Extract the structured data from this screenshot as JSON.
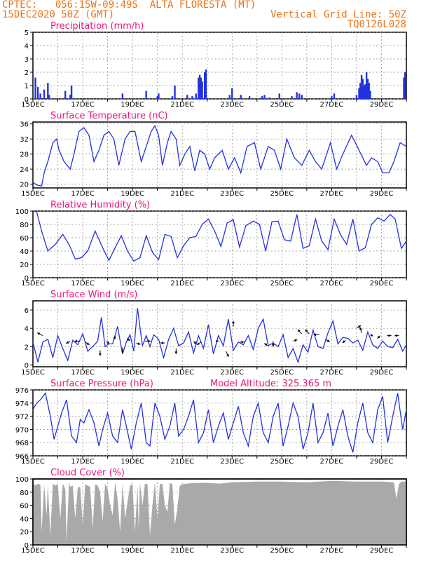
{
  "header": {
    "line1_left": "CPTEC:   056:15W-09:49S  ALTA FLORESTA (MT)",
    "line2_left": "15DEC2020 50Z (GMT)",
    "line2_right": "Vertical Grid Line: 50Z",
    "line3_right": "TQ0126L028"
  },
  "colors": {
    "line": "#2233dd",
    "bar": "#2233dd",
    "cloud": "#a9a9a9",
    "title": "#e8177a",
    "header": "#e8751a"
  },
  "x_labels": [
    "15DEC",
    "17DEC",
    "19DEC",
    "21DEC",
    "23DEC",
    "25DEC",
    "27DEC",
    "29DEC"
  ],
  "chart_data": [
    {
      "type": "bar",
      "title": "Precipitation (mm/h)",
      "ylim": [
        0,
        5
      ],
      "yticks": [
        0,
        1,
        2,
        3,
        4,
        5
      ],
      "x_range": [
        0,
        15
      ],
      "points": [
        [
          0.1,
          1.6
        ],
        [
          0.2,
          0.9
        ],
        [
          0.3,
          0.4
        ],
        [
          0.45,
          0.7
        ],
        [
          0.6,
          1.2
        ],
        [
          0.65,
          0.3
        ],
        [
          1.3,
          0.6
        ],
        [
          1.5,
          0.3
        ],
        [
          1.55,
          1.0
        ],
        [
          3.6,
          0.4
        ],
        [
          4.55,
          0.6
        ],
        [
          5.0,
          0.2
        ],
        [
          5.05,
          0.4
        ],
        [
          5.6,
          0.2
        ],
        [
          5.7,
          1.0
        ],
        [
          6.2,
          0.3
        ],
        [
          6.4,
          0.2
        ],
        [
          6.55,
          0.4
        ],
        [
          6.65,
          1.6
        ],
        [
          6.7,
          1.8
        ],
        [
          6.75,
          1.6
        ],
        [
          6.8,
          1.3
        ],
        [
          6.9,
          2.0
        ],
        [
          6.95,
          2.2
        ],
        [
          7.9,
          0.3
        ],
        [
          8.0,
          0.8
        ],
        [
          8.35,
          0.3
        ],
        [
          8.7,
          0.2
        ],
        [
          9.2,
          0.2
        ],
        [
          9.3,
          0.3
        ],
        [
          9.5,
          0.1
        ],
        [
          9.9,
          0.4
        ],
        [
          10.4,
          0.2
        ],
        [
          10.6,
          0.5
        ],
        [
          10.7,
          0.4
        ],
        [
          10.8,
          0.3
        ],
        [
          12.0,
          0.2
        ],
        [
          12.1,
          0.4
        ],
        [
          13.0,
          0.3
        ],
        [
          13.1,
          0.8
        ],
        [
          13.15,
          1.2
        ],
        [
          13.2,
          1.8
        ],
        [
          13.25,
          1.5
        ],
        [
          13.3,
          1.0
        ],
        [
          13.35,
          1.1
        ],
        [
          13.4,
          2.0
        ],
        [
          13.45,
          1.5
        ],
        [
          13.5,
          1.2
        ],
        [
          13.55,
          0.6
        ],
        [
          14.9,
          1.6
        ],
        [
          14.95,
          2.0
        ]
      ]
    },
    {
      "type": "line",
      "title": "Surface Temperature (nC)",
      "ylim": [
        19,
        36.5
      ],
      "yticks": [
        20,
        24,
        28,
        32,
        36
      ],
      "x": [
        0,
        0.15,
        0.35,
        0.45,
        0.6,
        0.8,
        0.95,
        1.05,
        1.25,
        1.5,
        1.65,
        1.85,
        2.05,
        2.25,
        2.45,
        2.65,
        2.85,
        3.05,
        3.25,
        3.45,
        3.7,
        3.9,
        4.1,
        4.35,
        4.55,
        4.75,
        4.9,
        5.05,
        5.2,
        5.4,
        5.55,
        5.75,
        5.9,
        6.1,
        6.3,
        6.5,
        6.7,
        6.9,
        7.1,
        7.3,
        7.6,
        7.85,
        8.1,
        8.35,
        8.6,
        8.9,
        9.15,
        9.45,
        9.7,
        9.95,
        10.2,
        10.5,
        10.8,
        11.1,
        11.35,
        11.6,
        11.95,
        12.2,
        12.45,
        12.8,
        13.1,
        13.4,
        13.6,
        13.85,
        14.05,
        14.3,
        14.5,
        14.75,
        15
      ],
      "values": [
        20.5,
        19.8,
        19.5,
        23,
        26,
        31,
        32,
        29,
        26,
        24,
        28,
        34,
        35,
        33,
        26,
        29,
        33,
        34,
        32,
        25,
        32,
        34,
        34,
        26,
        30,
        34,
        35.5,
        33,
        25,
        31,
        34,
        32,
        25,
        28,
        30,
        23.5,
        29,
        28,
        24,
        27,
        29,
        24,
        27,
        23,
        30,
        31,
        24,
        30,
        29,
        24,
        32,
        27,
        25,
        29,
        26,
        24,
        31,
        24,
        28,
        33,
        29,
        25,
        27,
        26,
        23,
        23,
        26,
        31,
        30
      ]
    },
    {
      "type": "line",
      "title": "Relative Humidity (%)",
      "ylim": [
        0,
        100
      ],
      "yticks": [
        0,
        20,
        40,
        60,
        80,
        100
      ],
      "x": [
        0,
        0.15,
        0.35,
        0.6,
        0.9,
        1.2,
        1.45,
        1.7,
        1.95,
        2.2,
        2.5,
        2.8,
        3.05,
        3.3,
        3.55,
        3.8,
        4.05,
        4.3,
        4.55,
        4.8,
        5.05,
        5.3,
        5.55,
        5.8,
        6.05,
        6.3,
        6.55,
        6.8,
        7.05,
        7.3,
        7.55,
        7.8,
        8.05,
        8.3,
        8.55,
        8.85,
        9.1,
        9.35,
        9.6,
        9.85,
        10.1,
        10.35,
        10.6,
        10.85,
        11.1,
        11.35,
        11.6,
        11.85,
        12.1,
        12.35,
        12.6,
        12.85,
        13.1,
        13.35,
        13.6,
        13.85,
        14.1,
        14.35,
        14.55,
        14.8,
        15
      ],
      "values": [
        100,
        99,
        70,
        40,
        50,
        65,
        50,
        28,
        30,
        40,
        70,
        45,
        26,
        45,
        63,
        40,
        25,
        30,
        63,
        38,
        27,
        65,
        62,
        30,
        48,
        60,
        62,
        80,
        88,
        70,
        47,
        82,
        87,
        46,
        78,
        85,
        80,
        40,
        84,
        85,
        57,
        55,
        95,
        44,
        48,
        88,
        55,
        42,
        88,
        65,
        50,
        88,
        40,
        45,
        80,
        90,
        85,
        95,
        88,
        44,
        55
      ]
    },
    {
      "type": "line",
      "title": "Surface Wind (m/s)",
      "ylim": [
        -0.2,
        7
      ],
      "yticks": [
        0,
        2,
        4,
        6
      ],
      "x": [
        0,
        0.2,
        0.4,
        0.6,
        0.8,
        1.0,
        1.2,
        1.4,
        1.6,
        1.8,
        2.0,
        2.2,
        2.4,
        2.6,
        2.75,
        2.9,
        3.05,
        3.2,
        3.4,
        3.6,
        3.75,
        3.9,
        4.05,
        4.2,
        4.4,
        4.55,
        4.7,
        4.85,
        5.05,
        5.25,
        5.45,
        5.65,
        5.85,
        6.05,
        6.25,
        6.45,
        6.65,
        6.85,
        7.05,
        7.25,
        7.45,
        7.65,
        7.85,
        8.05,
        8.25,
        8.45,
        8.65,
        8.85,
        9.05,
        9.25,
        9.45,
        9.65,
        9.85,
        10.05,
        10.25,
        10.45,
        10.65,
        10.85,
        11.05,
        11.25,
        11.45,
        11.65,
        11.85,
        12.05,
        12.25,
        12.45,
        12.65,
        12.85,
        13.05,
        13.25,
        13.45,
        13.65,
        13.85,
        14.05,
        14.25,
        14.45,
        14.65,
        14.85,
        15
      ],
      "values": [
        2.5,
        0.3,
        2.5,
        2.8,
        0.8,
        3.2,
        1.8,
        0.5,
        2.7,
        2.2,
        3.4,
        1.5,
        2.0,
        2.6,
        5.2,
        2.0,
        2.3,
        2.3,
        4.2,
        1.2,
        2.5,
        3.3,
        1.5,
        6.2,
        2.1,
        3.2,
        2.0,
        3.3,
        2.8,
        0.8,
        2.8,
        4.0,
        2.1,
        2.4,
        3.6,
        1.3,
        3.2,
        1.8,
        4.4,
        1.2,
        3.2,
        2.1,
        5.0,
        1.6,
        2.5,
        2.2,
        3.2,
        1.7,
        4.0,
        5.0,
        2.1,
        2.4,
        2.0,
        3.3,
        0.8,
        1.8,
        0.3,
        2.2,
        1.4,
        3.8,
        2.0,
        1.8,
        3.5,
        4.8,
        2.3,
        3.0,
        2.9,
        2.4,
        2.7,
        1.6,
        3.6,
        2.2,
        1.8,
        2.6,
        2.0,
        1.9,
        2.8,
        1.5,
        2.2
      ],
      "arrows": [
        [
          0.4,
          3.2,
          -2,
          -1
        ],
        [
          1.5,
          2.6,
          -1.5,
          0.8
        ],
        [
          1.9,
          2.6,
          -2,
          0
        ],
        [
          2.1,
          2.5,
          1.5,
          1
        ],
        [
          2.7,
          1.6,
          0,
          2
        ],
        [
          2.95,
          2.6,
          1,
          1
        ],
        [
          3.25,
          2.7,
          0.5,
          -1.5
        ],
        [
          3.6,
          1.9,
          0,
          2
        ],
        [
          3.9,
          2.6,
          -1,
          -1
        ],
        [
          4.15,
          2.4,
          1.5,
          0.5
        ],
        [
          4.5,
          2.6,
          2,
          0
        ],
        [
          5.3,
          2.4,
          -1.5,
          0
        ],
        [
          5.75,
          1.8,
          0,
          2
        ],
        [
          6.45,
          2.6,
          1,
          1
        ],
        [
          6.75,
          2.5,
          -1.5,
          1
        ],
        [
          7.35,
          2.6,
          1,
          0
        ],
        [
          7.75,
          1.5,
          1,
          2
        ],
        [
          8.05,
          4.2,
          0,
          -2
        ],
        [
          8.5,
          2.5,
          -1.5,
          0
        ],
        [
          9.3,
          2.4,
          1,
          1
        ],
        [
          9.65,
          2.6,
          0,
          2
        ],
        [
          10.45,
          2.6,
          1.5,
          -0.5
        ],
        [
          10.8,
          3.4,
          -1.5,
          -1.5
        ],
        [
          11.1,
          3.4,
          -1.5,
          -1.5
        ],
        [
          11.5,
          3.3,
          -2,
          0
        ],
        [
          11.75,
          2.8,
          1.5,
          1
        ],
        [
          12.55,
          2.7,
          -1,
          1
        ],
        [
          13.0,
          4.0,
          1.5,
          -1
        ],
        [
          13.2,
          3.5,
          -0.5,
          -2
        ],
        [
          13.55,
          3.3,
          1,
          0.5
        ],
        [
          13.95,
          3.2,
          -1,
          1
        ],
        [
          14.4,
          3.2,
          -1.5,
          0
        ],
        [
          14.7,
          3.2,
          -1.5,
          0
        ]
      ]
    },
    {
      "type": "line",
      "title": "Surface Pressure (hPa)",
      "ylim": [
        966,
        976
      ],
      "yticks": [
        966,
        968,
        970,
        972,
        974,
        976
      ],
      "annotation": "Model Altitude: 325.365 m",
      "x": [
        0,
        0.15,
        0.3,
        0.5,
        0.7,
        0.85,
        1.0,
        1.15,
        1.35,
        1.55,
        1.75,
        1.9,
        2.05,
        2.25,
        2.45,
        2.65,
        2.8,
        3.0,
        3.2,
        3.4,
        3.6,
        3.75,
        3.95,
        4.15,
        4.35,
        4.55,
        4.7,
        4.9,
        5.1,
        5.3,
        5.5,
        5.7,
        5.85,
        6.05,
        6.25,
        6.45,
        6.65,
        6.85,
        7.05,
        7.25,
        7.45,
        7.65,
        7.85,
        8.05,
        8.25,
        8.45,
        8.65,
        8.85,
        9.05,
        9.25,
        9.45,
        9.65,
        9.85,
        10.05,
        10.25,
        10.45,
        10.65,
        10.85,
        11.05,
        11.25,
        11.45,
        11.65,
        11.85,
        12.05,
        12.25,
        12.45,
        12.65,
        12.85,
        13.05,
        13.25,
        13.45,
        13.65,
        13.85,
        14.05,
        14.25,
        14.45,
        14.65,
        14.85,
        15
      ],
      "values": [
        973,
        974,
        974.5,
        975.5,
        972,
        968.5,
        970.5,
        972.5,
        974.5,
        969,
        968,
        971.5,
        971,
        973,
        971,
        967.5,
        970,
        972.5,
        969,
        968,
        973,
        970.5,
        967,
        971,
        974,
        968,
        967.5,
        974,
        972,
        968.5,
        970.5,
        974,
        969,
        970,
        972,
        974.5,
        968,
        969.5,
        973,
        968,
        970.5,
        972.5,
        968.5,
        971,
        973.5,
        969.5,
        967.5,
        972,
        974,
        969.5,
        968,
        972,
        974,
        967.5,
        970.5,
        974,
        972,
        967,
        969.5,
        974,
        968,
        969.5,
        972.5,
        967.5,
        970.5,
        973,
        969,
        966.5,
        971,
        974,
        969.5,
        968,
        973,
        975,
        968,
        972,
        975.5,
        970,
        973
      ]
    },
    {
      "type": "area",
      "title": "Cloud Cover (%)",
      "ylim": [
        0,
        100
      ],
      "yticks": [
        0,
        20,
        40,
        60,
        80,
        100
      ],
      "x": [
        0,
        0.1,
        0.2,
        0.3,
        0.35,
        0.45,
        0.55,
        0.6,
        0.7,
        0.8,
        0.9,
        1.0,
        1.1,
        1.2,
        1.3,
        1.35,
        1.45,
        1.5,
        1.6,
        1.7,
        1.8,
        1.9,
        2.0,
        2.1,
        2.2,
        2.3,
        2.4,
        2.5,
        2.6,
        2.7,
        2.8,
        2.9,
        3.0,
        3.1,
        3.2,
        3.3,
        3.4,
        3.5,
        3.6,
        3.7,
        3.8,
        3.9,
        4.0,
        4.1,
        4.2,
        4.25,
        4.3,
        4.4,
        4.5,
        4.6,
        4.7,
        4.8,
        4.9,
        5.0,
        5.1,
        5.2,
        5.3,
        5.4,
        5.5,
        5.6,
        5.7,
        5.8,
        5.9,
        6.0,
        6.2,
        6.5,
        7.0,
        7.5,
        8.0,
        9.0,
        10.0,
        11.0,
        12.0,
        13.0,
        14.0,
        14.5,
        14.6,
        14.7,
        14.8,
        15
      ],
      "values": [
        93,
        90,
        93,
        91,
        20,
        92,
        45,
        91,
        15,
        93,
        90,
        92,
        40,
        93,
        85,
        6,
        95,
        88,
        90,
        40,
        87,
        88,
        30,
        92,
        90,
        88,
        25,
        92,
        90,
        80,
        35,
        93,
        85,
        60,
        45,
        95,
        70,
        20,
        93,
        40,
        65,
        90,
        92,
        20,
        90,
        25,
        95,
        60,
        93,
        92,
        15,
        60,
        95,
        40,
        92,
        93,
        60,
        50,
        94,
        92,
        30,
        55,
        90,
        92,
        93,
        94,
        94,
        93,
        95,
        96,
        96,
        95,
        97,
        96,
        96,
        95,
        70,
        92,
        96,
        96
      ]
    }
  ]
}
